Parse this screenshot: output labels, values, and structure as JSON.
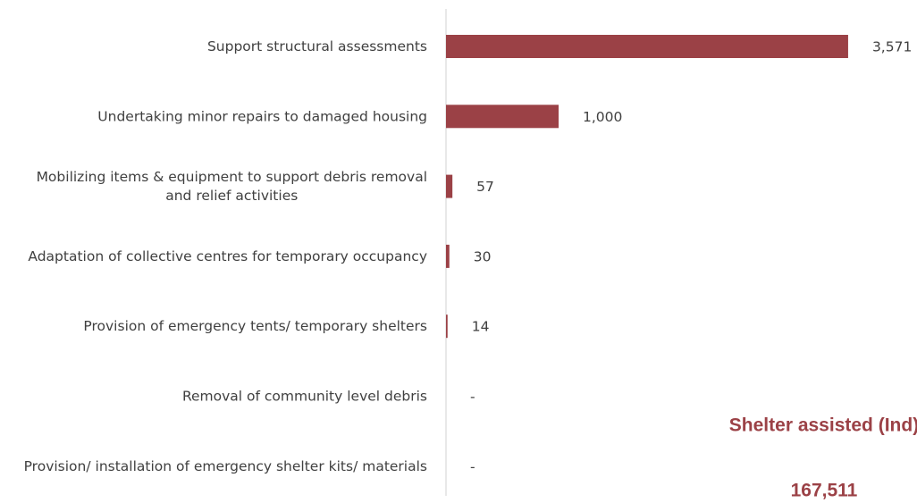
{
  "chart_data": {
    "type": "hbar",
    "categories": [
      "Support structural assessments",
      "Undertaking minor repairs to damaged housing",
      "Mobilizing items & equipment to support debris removal and relief activities",
      "Adaptation of collective centres for temporary occupancy",
      "Provision of emergency tents/ temporary shelters",
      "Removal of community level debris",
      "Provision/ installation of emergency shelter kits/ materials"
    ],
    "values": [
      3571,
      1000,
      57,
      30,
      14,
      null,
      null
    ],
    "value_labels": [
      "3,571",
      "1,000",
      "57",
      "30",
      "14",
      "-",
      "-"
    ],
    "color": "#9b4146",
    "xlim": [
      0,
      4000
    ],
    "annotations": [
      "Shelter assisted (Ind)",
      "167,511"
    ]
  }
}
